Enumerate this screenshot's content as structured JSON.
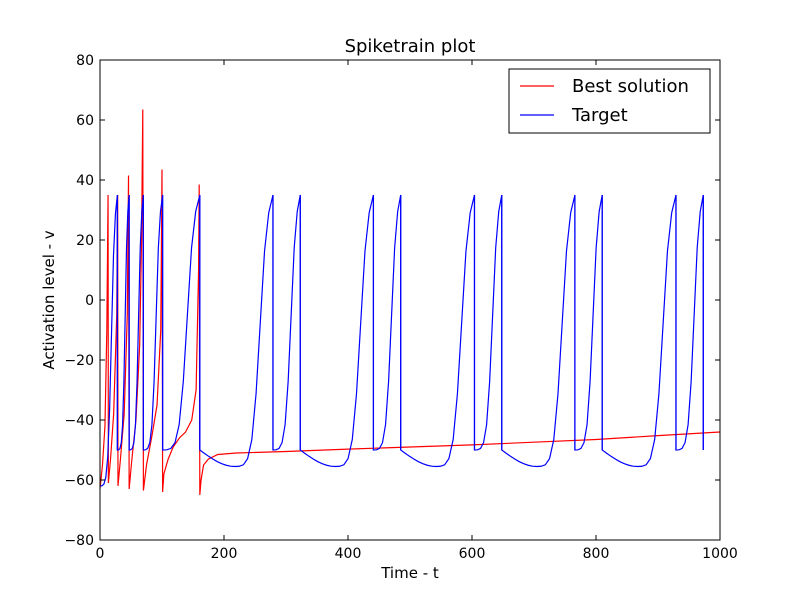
{
  "chart_data": {
    "type": "line",
    "title": "Spiketrain plot",
    "xlabel": "Time - t",
    "ylabel": "Activation level - v",
    "xlim": [
      0,
      1000
    ],
    "ylim": [
      -80,
      80
    ],
    "xticks": [
      0,
      200,
      400,
      600,
      800,
      1000
    ],
    "yticks": [
      -80,
      -60,
      -40,
      -20,
      0,
      20,
      40,
      60,
      80
    ],
    "grid": false,
    "legend_position": "top-right",
    "series": [
      {
        "name": "Best solution",
        "color": "#ff0000",
        "points": [
          [
            0,
            -63
          ],
          [
            4,
            -55
          ],
          [
            8,
            -42
          ],
          [
            11,
            -10
          ],
          [
            13,
            35
          ],
          [
            13.5,
            -61
          ],
          [
            17,
            -53
          ],
          [
            22,
            -38
          ],
          [
            27,
            -5
          ],
          [
            28.5,
            35
          ],
          [
            29,
            -62
          ],
          [
            33,
            -53
          ],
          [
            39,
            -38
          ],
          [
            44,
            -5
          ],
          [
            46,
            41.5
          ],
          [
            47,
            -63
          ],
          [
            51,
            -54
          ],
          [
            58,
            -40
          ],
          [
            64,
            -15
          ],
          [
            67,
            20
          ],
          [
            69,
            63.5
          ],
          [
            70,
            -63.5
          ],
          [
            75,
            -55
          ],
          [
            84,
            -45
          ],
          [
            92,
            -35
          ],
          [
            98,
            -10
          ],
          [
            100,
            43.5
          ],
          [
            101,
            -64
          ],
          [
            103,
            -58
          ],
          [
            110,
            -53
          ],
          [
            118,
            -49
          ],
          [
            128,
            -46
          ],
          [
            138,
            -44
          ],
          [
            148,
            -40
          ],
          [
            155,
            -30
          ],
          [
            159,
            10
          ],
          [
            160,
            38.5
          ],
          [
            161,
            -65
          ],
          [
            163,
            -60
          ],
          [
            167,
            -55
          ],
          [
            175,
            -53
          ],
          [
            190,
            -51.5
          ],
          [
            220,
            -51
          ],
          [
            300,
            -50.5
          ],
          [
            400,
            -49.7
          ],
          [
            500,
            -49
          ],
          [
            600,
            -48.3
          ],
          [
            700,
            -47.4
          ],
          [
            800,
            -46.5
          ],
          [
            900,
            -45.2
          ],
          [
            1000,
            -44
          ]
        ]
      },
      {
        "name": "Target",
        "color": "#0000ff",
        "spike_times": [
          28,
          47,
          70,
          101,
          161,
          279,
          323,
          441,
          485,
          604,
          648,
          766,
          810,
          929,
          973
        ],
        "peak": 35,
        "reset": -50,
        "trough": -55.5,
        "initial": -62
      }
    ]
  }
}
